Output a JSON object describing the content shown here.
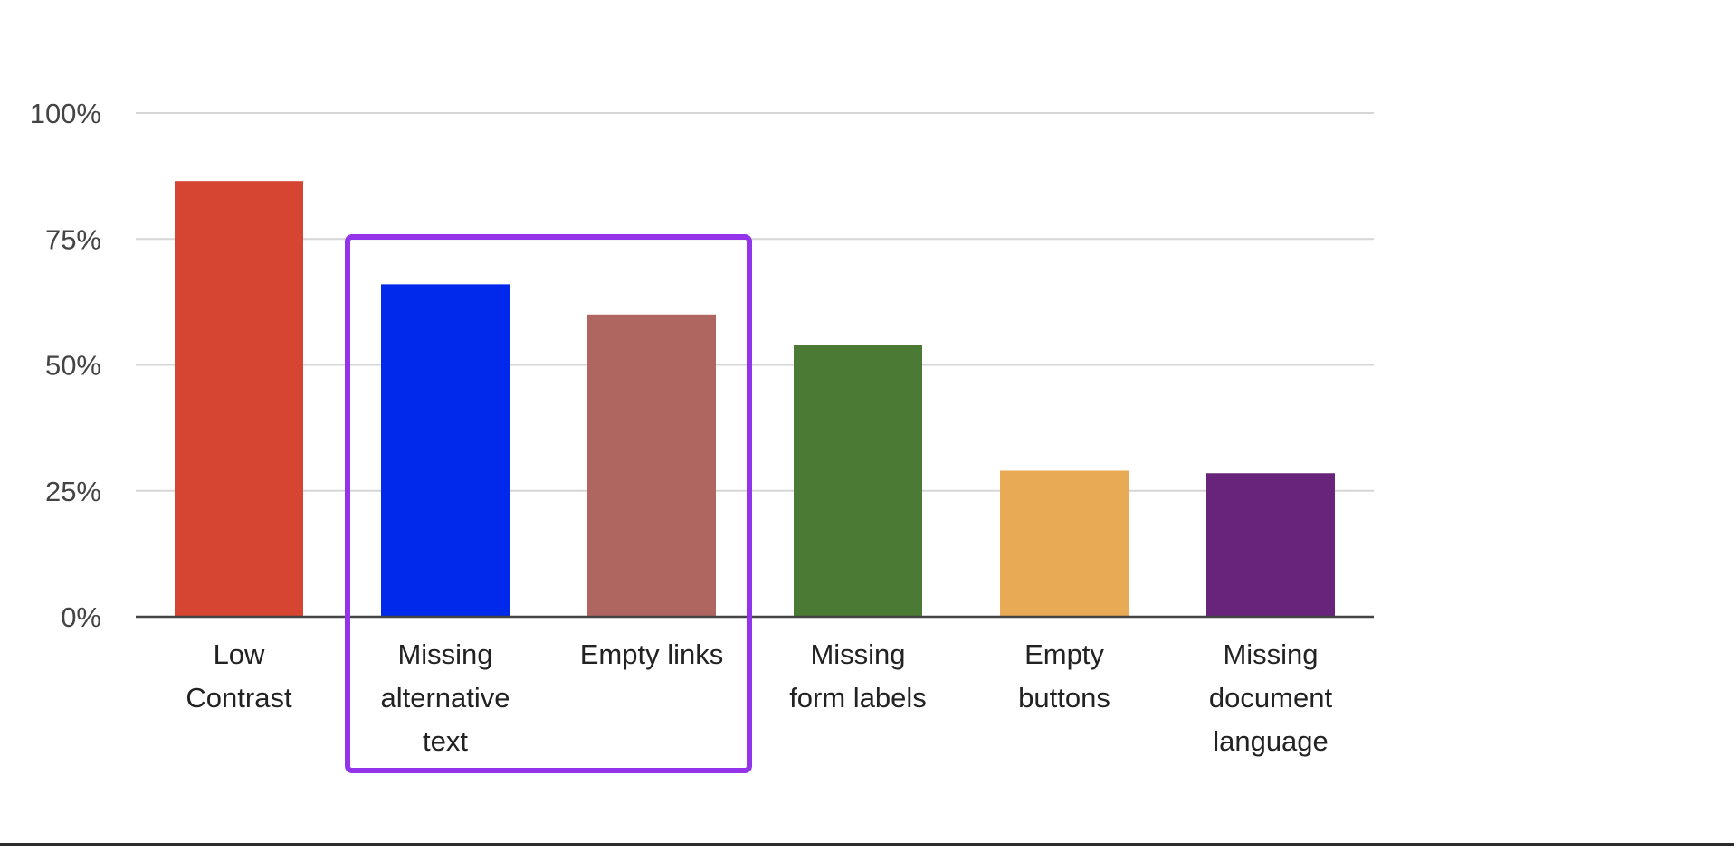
{
  "chart_data": {
    "type": "bar",
    "categories": [
      [
        "Low",
        "Contrast"
      ],
      [
        "Missing",
        "alternative",
        "text"
      ],
      [
        "Empty links"
      ],
      [
        "Missing",
        "form labels"
      ],
      [
        "Empty",
        "buttons"
      ],
      [
        "Missing",
        "document",
        "language"
      ]
    ],
    "values": [
      86.5,
      66,
      60,
      54,
      29,
      28.5
    ],
    "colors": [
      "#d64532",
      "#0029ec",
      "#b06660",
      "#4a7a33",
      "#e8aa55",
      "#68247a"
    ],
    "y_ticks": [
      "0%",
      "25%",
      "50%",
      "75%",
      "100%"
    ],
    "ylim": [
      0,
      100
    ],
    "grid": true,
    "highlight": {
      "from_index": 1,
      "to_index": 2,
      "color": "#9333ea"
    }
  }
}
